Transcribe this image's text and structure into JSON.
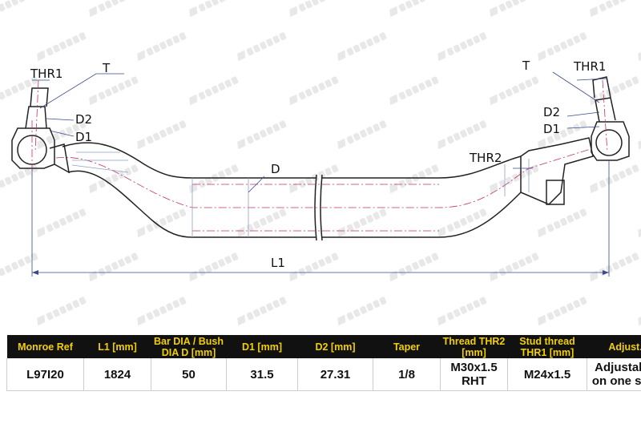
{
  "watermark": "MONROE",
  "drawing": {
    "labels": {
      "thr1_left": "THR1",
      "t_left": "T",
      "d2_left": "D2",
      "d1_left": "D1",
      "d": "D",
      "l1": "L1",
      "thr2": "THR2",
      "t_right": "T",
      "thr1_right": "THR1",
      "d2_right": "D2",
      "d1_right": "D1"
    }
  },
  "colors": {
    "header_bg": "#111111",
    "header_text": "#f2cf00",
    "outline": "#222222",
    "centerline": "#c0306a"
  },
  "table": {
    "headers": [
      "Monroe Ref",
      "L1 [mm]",
      "Bar DIA / Bush DIA D [mm]",
      "D1 [mm]",
      "D2 [mm]",
      "Taper",
      "Thread THR2 [mm]",
      "Stud thread THR1 [mm]",
      "Adjust."
    ],
    "rows": [
      [
        "L97I20",
        "1824",
        "50",
        "31.5",
        "27.31",
        "1/8",
        "M30x1.5 RHT",
        "M24x1.5",
        "Adjustable on one side"
      ]
    ]
  }
}
